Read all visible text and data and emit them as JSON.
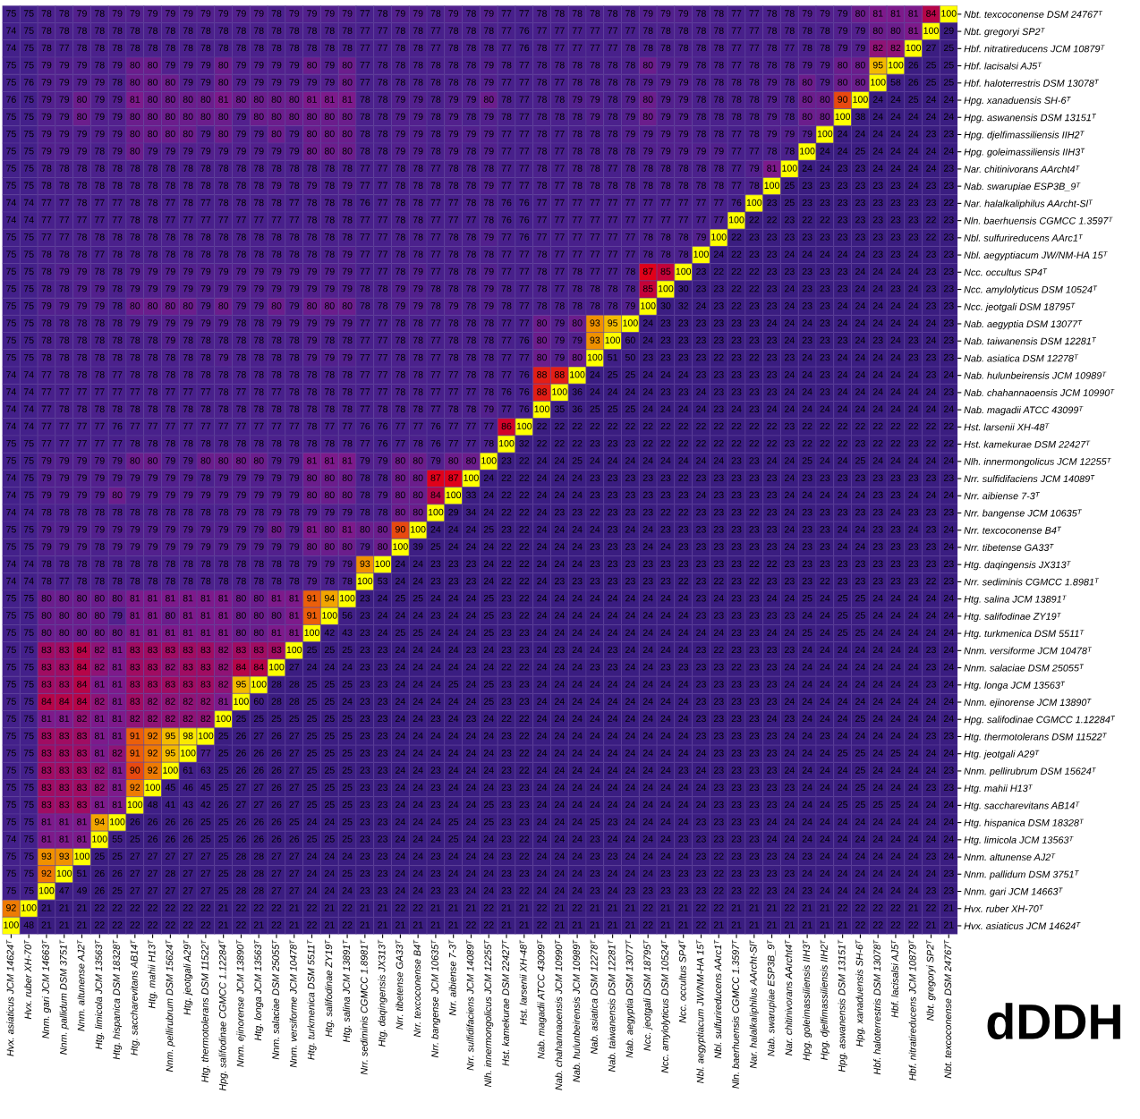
{
  "chart_data": {
    "type": "heatmap",
    "title": "dDDH",
    "data_labels": true,
    "categories": [
      "Hvx. asiaticus JCM 14624ᵀ",
      "Hvx. ruber XH-70ᵀ",
      "Nnm. gari JCM 14663ᵀ",
      "Nnm. pallidum DSM 3751ᵀ",
      "Nnm. altunense AJ2ᵀ",
      "Htg. limicola JCM 13563ᵀ",
      "Htg. hispanica DSM 18328ᵀ",
      "Htg. saccharevitans AB14ᵀ",
      "Htg. mahii H13ᵀ",
      "Nnm. pellirubrum DSM 15624ᵀ",
      "Htg. jeotgali A29ᵀ",
      "Htg. thermotolerans DSM 11522ᵀ",
      "Hpg. salifodinae CGMCC 1.12284ᵀ",
      "Nnm. ejinorense JCM 13890ᵀ",
      "Htg. longa JCM 13563ᵀ",
      "Nnm. salaciae DSM 25055ᵀ",
      "Nnm. versiforme JCM 10478ᵀ",
      "Htg. turkmenica DSM 5511ᵀ",
      "Htg. salifodinae ZY19ᵀ",
      "Htg. salina JCM 13891ᵀ",
      "Nrr. sediminis CGMCC 1.8981ᵀ",
      "Htg. daqingensis JX313ᵀ",
      "Nrr. tibetense GA33ᵀ",
      "Nrr. texcoconense B4ᵀ",
      "Nrr. bangense JCM 10635ᵀ",
      "Nrr. aibiense 7-3ᵀ",
      "Nrr. sulfidifaciens JCM 14089ᵀ",
      "Nlh. innermongolicus JCM 12255ᵀ",
      "Hst. kamekurae DSM 22427ᵀ",
      "Hst. larsenii XH-48ᵀ",
      "Nab. magadii ATCC 43099ᵀ",
      "Nab. chahannaoensis JCM 10990ᵀ",
      "Nab. hulunbeirensis JCM 10989ᵀ",
      "Nab. asiatica DSM 12278ᵀ",
      "Nab. taiwanensis DSM 12281ᵀ",
      "Nab. aegyptia DSM 13077ᵀ",
      "Ncc. jeotgali DSM 18795ᵀ",
      "Ncc. amylolyticus DSM 10524ᵀ",
      "Ncc. occultus SP4ᵀ",
      "Nbl. aegyptiacum JW/NM-HA 15ᵀ",
      "Nbl. sulfurireducens AArc1ᵀ",
      "Nln. baerhuensis CGMCC 1.3597ᵀ",
      "Nar. halalkaliphilus AArcht-Slᵀ",
      "Nab. swarupiae ESP3B_9ᵀ",
      "Nar. chitinivorans AArcht4ᵀ",
      "Hpg. goleimassiliensis IIH3ᵀ",
      "Hpg. djelfimassiliensis IIH2ᵀ",
      "Hpg. aswanensis DSM 13151ᵀ",
      "Hpg. xanaduensis SH-6ᵀ",
      "Hbf. haloterrestris DSM 13078ᵀ",
      "Hbf. lacisalsi AJ5ᵀ",
      "Hbf. nitratireducens JCM 10879ᵀ",
      "Nbt. gregoryi SP2ᵀ",
      "Nbt. texcoconense DSM 24767ᵀ"
    ],
    "y_categories": [
      "Nbt. texcoconense DSM 24767ᵀ",
      "Nbt. gregoryi SP2ᵀ",
      "Hbf. nitratireducens JCM 10879ᵀ",
      "Hbf. lacisalsi AJ5ᵀ",
      "Hbf. haloterrestris DSM 13078ᵀ",
      "Hpg. xanaduensis SH-6ᵀ",
      "Hpg. aswanensis DSM 13151ᵀ",
      "Hpg. djelfimassiliensis IIH2ᵀ",
      "Hpg. goleimassiliensis IIH3ᵀ",
      "Nar. chitinivorans AArcht4ᵀ",
      "Nab. swarupiae ESP3B_9ᵀ",
      "Nar. halalkaliphilus AArcht-Slᵀ",
      "Nln. baerhuensis CGMCC 1.3597ᵀ",
      "Nbl. sulfurireducens AArc1ᵀ",
      "Nbl. aegyptiacum JW/NM-HA 15ᵀ",
      "Ncc. occultus SP4ᵀ",
      "Ncc. amylolyticus DSM 10524ᵀ",
      "Ncc. jeotgali DSM 18795ᵀ",
      "Nab. aegyptia DSM 13077ᵀ",
      "Nab. taiwanensis DSM 12281ᵀ",
      "Nab. asiatica DSM 12278ᵀ",
      "Nab. hulunbeirensis JCM 10989ᵀ",
      "Nab. chahannaoensis JCM 10990ᵀ",
      "Nab. magadii ATCC 43099ᵀ",
      "Hst. larsenii XH-48ᵀ",
      "Hst. kamekurae DSM 22427ᵀ",
      "Nlh. innermongolicus JCM 12255ᵀ",
      "Nrr. sulfidifaciens JCM 14089ᵀ",
      "Nrr. aibiense 7-3ᵀ",
      "Nrr. bangense JCM 10635ᵀ",
      "Nrr. texcoconense B4ᵀ",
      "Nrr. tibetense GA33ᵀ",
      "Htg. daqingensis JX313ᵀ",
      "Nrr. sediminis CGMCC 1.8981ᵀ",
      "Htg. salina JCM 13891ᵀ",
      "Htg. salifodinae ZY19ᵀ",
      "Htg. turkmenica DSM 5511ᵀ",
      "Nnm. versiforme JCM 10478ᵀ",
      "Nnm. salaciae DSM 25055ᵀ",
      "Htg. longa JCM 13563ᵀ",
      "Nnm. ejinorense JCM 13890ᵀ",
      "Hpg. salifodinae CGMCC 1.12284ᵀ",
      "Htg. thermotolerans DSM 11522ᵀ",
      "Htg. jeotgali A29ᵀ",
      "Nnm. pellirubrum DSM 15624ᵀ",
      "Htg. mahii H13ᵀ",
      "Htg. saccharevitans AB14ᵀ",
      "Htg. hispanica DSM 18328ᵀ",
      "Htg. limicola JCM 13563ᵀ",
      "Nnm. altunense AJ2ᵀ",
      "Nnm. pallidum DSM 3751ᵀ",
      "Nnm. gari JCM 14663ᵀ",
      "Hvx. ruber XH-70ᵀ",
      "Hvx. asiaticus JCM 14624ᵀ"
    ],
    "cells": [
      [
        75,
        75,
        78,
        78,
        79,
        78,
        79,
        79,
        79,
        79,
        79,
        79,
        79,
        79,
        79,
        78,
        79,
        79,
        79,
        79,
        77,
        78,
        79,
        79,
        78,
        79,
        78,
        79,
        77,
        77,
        78,
        78,
        78,
        78,
        78,
        78,
        79,
        79,
        79,
        78,
        78,
        77,
        77,
        78,
        78,
        79,
        79,
        79,
        80,
        81,
        81,
        81,
        84,
        100
      ],
      [
        74,
        75,
        78,
        78,
        78,
        78,
        78,
        78,
        78,
        78,
        78,
        78,
        78,
        78,
        78,
        78,
        78,
        78,
        78,
        78,
        77,
        77,
        78,
        78,
        77,
        78,
        78,
        78,
        77,
        76,
        77,
        77,
        77,
        77,
        77,
        77,
        78,
        78,
        78,
        78,
        78,
        77,
        77,
        78,
        78,
        78,
        78,
        79,
        79,
        80,
        80,
        81,
        100,
        29
      ],
      [
        74,
        75,
        78,
        77,
        78,
        78,
        78,
        78,
        78,
        78,
        78,
        78,
        78,
        78,
        78,
        78,
        78,
        78,
        78,
        78,
        77,
        77,
        78,
        78,
        77,
        78,
        78,
        78,
        77,
        76,
        78,
        77,
        77,
        77,
        77,
        78,
        78,
        78,
        78,
        78,
        78,
        77,
        77,
        78,
        77,
        78,
        78,
        79,
        79,
        82,
        82,
        100,
        27,
        25
      ],
      [
        75,
        75,
        79,
        79,
        79,
        78,
        79,
        80,
        80,
        79,
        79,
        79,
        80,
        79,
        79,
        79,
        79,
        80,
        79,
        80,
        77,
        78,
        78,
        78,
        78,
        78,
        78,
        79,
        78,
        77,
        78,
        78,
        78,
        78,
        78,
        78,
        80,
        79,
        79,
        78,
        78,
        77,
        78,
        78,
        78,
        79,
        79,
        80,
        80,
        95,
        100,
        26,
        25,
        25
      ],
      [
        75,
        76,
        79,
        79,
        79,
        79,
        78,
        80,
        80,
        80,
        79,
        79,
        80,
        79,
        79,
        79,
        79,
        79,
        79,
        80,
        77,
        78,
        78,
        78,
        78,
        78,
        78,
        79,
        77,
        77,
        78,
        77,
        78,
        78,
        78,
        78,
        79,
        79,
        79,
        78,
        78,
        78,
        78,
        79,
        78,
        80,
        79,
        80,
        80,
        100,
        58,
        26,
        25,
        25
      ],
      [
        76,
        75,
        79,
        79,
        80,
        79,
        79,
        81,
        80,
        80,
        80,
        80,
        81,
        80,
        80,
        80,
        80,
        81,
        81,
        81,
        78,
        78,
        79,
        79,
        78,
        79,
        79,
        80,
        78,
        77,
        78,
        78,
        79,
        79,
        78,
        79,
        80,
        79,
        79,
        78,
        78,
        78,
        78,
        79,
        78,
        80,
        80,
        90,
        100,
        24,
        24,
        25,
        24,
        24
      ],
      [
        75,
        75,
        79,
        79,
        80,
        79,
        79,
        80,
        80,
        80,
        80,
        80,
        80,
        79,
        80,
        80,
        80,
        80,
        80,
        80,
        78,
        78,
        79,
        79,
        78,
        79,
        78,
        79,
        78,
        77,
        78,
        78,
        78,
        79,
        78,
        79,
        80,
        79,
        79,
        78,
        78,
        78,
        78,
        79,
        78,
        80,
        80,
        100,
        38,
        24,
        24,
        24,
        24,
        24
      ],
      [
        75,
        75,
        79,
        79,
        79,
        79,
        79,
        80,
        80,
        80,
        80,
        79,
        80,
        79,
        79,
        80,
        79,
        80,
        80,
        80,
        78,
        78,
        79,
        79,
        78,
        79,
        79,
        79,
        77,
        77,
        78,
        77,
        78,
        78,
        78,
        79,
        79,
        79,
        79,
        78,
        78,
        77,
        78,
        79,
        79,
        79,
        100,
        24,
        24,
        24,
        24,
        24,
        23,
        23
      ],
      [
        75,
        75,
        79,
        79,
        79,
        78,
        79,
        80,
        79,
        79,
        79,
        79,
        79,
        79,
        79,
        79,
        79,
        80,
        80,
        80,
        78,
        78,
        79,
        79,
        78,
        79,
        78,
        79,
        77,
        77,
        78,
        77,
        78,
        78,
        78,
        78,
        79,
        79,
        79,
        79,
        79,
        77,
        77,
        78,
        78,
        100,
        24,
        24,
        25,
        24,
        24,
        24,
        24,
        24
      ],
      [
        75,
        75,
        78,
        78,
        78,
        78,
        78,
        78,
        78,
        78,
        78,
        78,
        78,
        78,
        78,
        78,
        78,
        78,
        78,
        78,
        77,
        77,
        78,
        78,
        77,
        78,
        78,
        78,
        77,
        77,
        78,
        77,
        78,
        78,
        77,
        78,
        78,
        78,
        78,
        78,
        78,
        77,
        79,
        81,
        100,
        24,
        24,
        23,
        23,
        24,
        24,
        24,
        24,
        23
      ],
      [
        75,
        75,
        78,
        78,
        78,
        78,
        78,
        78,
        78,
        78,
        78,
        78,
        78,
        78,
        78,
        79,
        78,
        79,
        78,
        79,
        77,
        77,
        78,
        78,
        78,
        78,
        78,
        79,
        77,
        77,
        78,
        77,
        78,
        78,
        78,
        78,
        78,
        78,
        78,
        78,
        78,
        77,
        78,
        100,
        25,
        23,
        23,
        23,
        23,
        23,
        23,
        24,
        23,
        23
      ],
      [
        74,
        74,
        77,
        77,
        78,
        77,
        77,
        78,
        78,
        77,
        78,
        77,
        78,
        78,
        78,
        78,
        77,
        78,
        78,
        78,
        76,
        77,
        78,
        78,
        77,
        77,
        78,
        78,
        76,
        76,
        77,
        77,
        77,
        77,
        77,
        77,
        77,
        77,
        77,
        77,
        77,
        76,
        100,
        23,
        25,
        23,
        23,
        23,
        23,
        23,
        23,
        23,
        23,
        22
      ],
      [
        74,
        74,
        77,
        77,
        77,
        77,
        77,
        78,
        78,
        77,
        77,
        77,
        77,
        77,
        77,
        77,
        77,
        78,
        78,
        78,
        77,
        77,
        78,
        78,
        77,
        77,
        77,
        78,
        76,
        76,
        77,
        77,
        77,
        77,
        77,
        77,
        77,
        77,
        77,
        77,
        77,
        100,
        22,
        22,
        23,
        22,
        22,
        23,
        23,
        23,
        23,
        23,
        22,
        23
      ],
      [
        75,
        75,
        77,
        77,
        78,
        78,
        78,
        78,
        78,
        78,
        78,
        78,
        78,
        78,
        78,
        78,
        78,
        78,
        78,
        78,
        77,
        77,
        78,
        78,
        77,
        78,
        78,
        79,
        77,
        76,
        77,
        77,
        77,
        77,
        77,
        77,
        78,
        78,
        78,
        79,
        100,
        22,
        23,
        23,
        23,
        23,
        23,
        23,
        23,
        23,
        23,
        23,
        22,
        23
      ],
      [
        75,
        75,
        78,
        78,
        78,
        77,
        78,
        78,
        78,
        78,
        78,
        78,
        78,
        78,
        78,
        78,
        78,
        78,
        78,
        79,
        77,
        77,
        78,
        78,
        77,
        78,
        78,
        78,
        77,
        77,
        78,
        77,
        77,
        77,
        77,
        77,
        78,
        78,
        78,
        100,
        24,
        22,
        23,
        23,
        24,
        24,
        24,
        24,
        24,
        23,
        23,
        24,
        23,
        23
      ],
      [
        75,
        75,
        78,
        79,
        79,
        78,
        78,
        79,
        79,
        79,
        79,
        79,
        79,
        79,
        79,
        79,
        79,
        79,
        79,
        79,
        77,
        77,
        78,
        79,
        77,
        78,
        78,
        79,
        77,
        77,
        78,
        77,
        78,
        77,
        77,
        78,
        87,
        85,
        100,
        23,
        22,
        22,
        22,
        23,
        23,
        23,
        23,
        23,
        24,
        24,
        24,
        24,
        23,
        23
      ],
      [
        75,
        75,
        78,
        78,
        79,
        79,
        78,
        79,
        79,
        79,
        79,
        79,
        79,
        79,
        79,
        79,
        79,
        79,
        79,
        79,
        78,
        78,
        79,
        79,
        78,
        78,
        78,
        79,
        78,
        77,
        78,
        77,
        78,
        78,
        78,
        78,
        85,
        100,
        30,
        23,
        23,
        22,
        22,
        23,
        24,
        23,
        23,
        23,
        24,
        24,
        23,
        24,
        23,
        23
      ],
      [
        75,
        75,
        79,
        79,
        79,
        79,
        78,
        80,
        80,
        80,
        80,
        79,
        80,
        79,
        79,
        80,
        79,
        80,
        80,
        80,
        78,
        78,
        79,
        79,
        78,
        79,
        78,
        79,
        78,
        77,
        78,
        78,
        78,
        78,
        78,
        79,
        100,
        30,
        32,
        24,
        23,
        22,
        23,
        23,
        24,
        23,
        23,
        24,
        24,
        24,
        24,
        24,
        23,
        23
      ],
      [
        75,
        75,
        78,
        78,
        78,
        78,
        78,
        79,
        79,
        79,
        79,
        79,
        79,
        78,
        78,
        79,
        79,
        79,
        79,
        79,
        77,
        77,
        78,
        78,
        77,
        78,
        78,
        78,
        77,
        77,
        80,
        79,
        80,
        93,
        95,
        100,
        24,
        23,
        23,
        23,
        23,
        23,
        23,
        24,
        24,
        24,
        23,
        24,
        24,
        24,
        24,
        24,
        24,
        23
      ],
      [
        75,
        75,
        78,
        78,
        78,
        78,
        78,
        78,
        78,
        79,
        78,
        78,
        78,
        78,
        78,
        78,
        78,
        79,
        78,
        78,
        77,
        77,
        78,
        78,
        77,
        78,
        78,
        78,
        77,
        76,
        80,
        79,
        79,
        93,
        100,
        60,
        24,
        23,
        23,
        23,
        23,
        23,
        23,
        23,
        24,
        23,
        23,
        23,
        24,
        23,
        24,
        23,
        24,
        23
      ],
      [
        75,
        75,
        78,
        78,
        78,
        78,
        78,
        78,
        78,
        78,
        78,
        78,
        79,
        78,
        78,
        78,
        78,
        79,
        79,
        79,
        77,
        77,
        78,
        78,
        77,
        78,
        78,
        78,
        77,
        77,
        80,
        79,
        80,
        100,
        51,
        50,
        23,
        23,
        23,
        23,
        22,
        23,
        22,
        23,
        23,
        24,
        23,
        24,
        24,
        24,
        24,
        23,
        23,
        23
      ],
      [
        74,
        74,
        77,
        78,
        78,
        78,
        77,
        78,
        78,
        78,
        78,
        78,
        78,
        78,
        78,
        78,
        78,
        78,
        78,
        78,
        77,
        77,
        78,
        78,
        77,
        77,
        78,
        78,
        77,
        76,
        88,
        88,
        100,
        24,
        25,
        25,
        24,
        24,
        24,
        23,
        23,
        23,
        23,
        23,
        24,
        24,
        23,
        24,
        24,
        24,
        24,
        24,
        23,
        24
      ],
      [
        74,
        74,
        77,
        77,
        77,
        77,
        77,
        77,
        78,
        77,
        77,
        77,
        78,
        77,
        78,
        77,
        78,
        78,
        78,
        78,
        77,
        77,
        78,
        78,
        77,
        77,
        77,
        78,
        76,
        76,
        88,
        100,
        36,
        24,
        24,
        24,
        24,
        23,
        23,
        24,
        23,
        23,
        23,
        23,
        24,
        24,
        23,
        24,
        24,
        24,
        24,
        24,
        24,
        23
      ],
      [
        74,
        74,
        77,
        78,
        78,
        78,
        78,
        78,
        78,
        78,
        78,
        78,
        78,
        78,
        78,
        78,
        78,
        78,
        78,
        78,
        77,
        78,
        78,
        78,
        77,
        78,
        78,
        79,
        77,
        76,
        100,
        35,
        36,
        25,
        25,
        25,
        24,
        24,
        24,
        24,
        23,
        24,
        23,
        24,
        24,
        24,
        24,
        24,
        24,
        24,
        24,
        24,
        24,
        24
      ],
      [
        74,
        74,
        77,
        77,
        77,
        77,
        76,
        77,
        77,
        77,
        77,
        77,
        77,
        77,
        77,
        77,
        77,
        78,
        77,
        77,
        76,
        76,
        77,
        77,
        76,
        77,
        77,
        77,
        86,
        100,
        22,
        22,
        22,
        22,
        22,
        22,
        22,
        22,
        22,
        22,
        22,
        22,
        22,
        22,
        23,
        22,
        22,
        22,
        22,
        22,
        22,
        22,
        22,
        22
      ],
      [
        75,
        75,
        77,
        77,
        77,
        77,
        77,
        78,
        78,
        78,
        78,
        78,
        78,
        78,
        78,
        78,
        78,
        78,
        78,
        78,
        77,
        76,
        77,
        78,
        76,
        77,
        77,
        78,
        100,
        32,
        22,
        22,
        22,
        23,
        23,
        23,
        22,
        22,
        22,
        22,
        22,
        22,
        22,
        22,
        23,
        22,
        22,
        22,
        23,
        22,
        22,
        23,
        22,
        22
      ],
      [
        75,
        75,
        79,
        79,
        79,
        79,
        79,
        80,
        80,
        79,
        79,
        80,
        80,
        80,
        80,
        79,
        79,
        81,
        81,
        81,
        79,
        79,
        80,
        80,
        79,
        80,
        80,
        100,
        23,
        22,
        24,
        24,
        25,
        24,
        24,
        24,
        24,
        24,
        24,
        24,
        24,
        23,
        23,
        24,
        24,
        25,
        24,
        24,
        25,
        24,
        24,
        24,
        24,
        24
      ],
      [
        74,
        75,
        79,
        79,
        79,
        79,
        79,
        79,
        79,
        79,
        79,
        78,
        79,
        79,
        79,
        79,
        79,
        80,
        80,
        80,
        78,
        78,
        80,
        80,
        87,
        87,
        100,
        24,
        22,
        22,
        24,
        24,
        24,
        23,
        23,
        23,
        23,
        23,
        22,
        23,
        23,
        23,
        23,
        23,
        24,
        23,
        23,
        23,
        23,
        23,
        23,
        23,
        23,
        23
      ],
      [
        74,
        75,
        79,
        79,
        79,
        79,
        80,
        79,
        79,
        79,
        79,
        79,
        79,
        79,
        79,
        79,
        79,
        80,
        80,
        80,
        78,
        79,
        80,
        80,
        84,
        100,
        33,
        24,
        22,
        22,
        24,
        24,
        24,
        23,
        23,
        23,
        23,
        23,
        23,
        24,
        23,
        23,
        23,
        23,
        24,
        24,
        24,
        24,
        24,
        23,
        23,
        24,
        24,
        24
      ],
      [
        74,
        74,
        78,
        78,
        78,
        78,
        78,
        78,
        78,
        78,
        78,
        78,
        78,
        79,
        78,
        79,
        78,
        79,
        79,
        79,
        78,
        78,
        80,
        80,
        100,
        29,
        34,
        24,
        22,
        22,
        24,
        23,
        23,
        22,
        23,
        23,
        23,
        22,
        22,
        23,
        23,
        23,
        22,
        23,
        24,
        23,
        23,
        23,
        23,
        23,
        24,
        23,
        23,
        23
      ],
      [
        75,
        75,
        79,
        79,
        79,
        79,
        79,
        79,
        79,
        79,
        79,
        79,
        79,
        79,
        79,
        80,
        79,
        81,
        80,
        81,
        80,
        80,
        90,
        100,
        24,
        24,
        24,
        25,
        23,
        22,
        24,
        24,
        24,
        24,
        23,
        24,
        24,
        23,
        23,
        23,
        23,
        23,
        23,
        23,
        24,
        23,
        23,
        24,
        24,
        23,
        23,
        24,
        23,
        24
      ],
      [
        75,
        75,
        79,
        79,
        79,
        78,
        79,
        79,
        79,
        79,
        79,
        79,
        79,
        79,
        79,
        79,
        79,
        80,
        80,
        80,
        79,
        80,
        100,
        39,
        25,
        24,
        24,
        24,
        22,
        22,
        24,
        24,
        24,
        23,
        23,
        23,
        24,
        24,
        23,
        23,
        23,
        23,
        23,
        23,
        24,
        23,
        23,
        24,
        24,
        23,
        23,
        23,
        23,
        24
      ],
      [
        74,
        74,
        78,
        78,
        78,
        78,
        78,
        78,
        78,
        78,
        78,
        78,
        78,
        78,
        78,
        78,
        78,
        79,
        79,
        79,
        93,
        100,
        24,
        24,
        23,
        23,
        23,
        24,
        22,
        22,
        24,
        24,
        24,
        23,
        23,
        23,
        23,
        23,
        23,
        23,
        23,
        23,
        22,
        22,
        23,
        23,
        23,
        23,
        23,
        23,
        23,
        23,
        23,
        23
      ],
      [
        74,
        74,
        78,
        77,
        78,
        78,
        78,
        78,
        78,
        78,
        78,
        78,
        78,
        78,
        78,
        78,
        78,
        79,
        78,
        78,
        100,
        53,
        24,
        24,
        23,
        23,
        23,
        24,
        22,
        22,
        24,
        23,
        23,
        23,
        23,
        23,
        23,
        23,
        22,
        23,
        22,
        23,
        22,
        23,
        23,
        23,
        22,
        23,
        23,
        23,
        23,
        23,
        22,
        23
      ],
      [
        75,
        75,
        80,
        80,
        80,
        80,
        80,
        81,
        81,
        81,
        81,
        81,
        81,
        80,
        80,
        81,
        81,
        91,
        94,
        100,
        23,
        24,
        25,
        25,
        24,
        24,
        24,
        25,
        23,
        22,
        24,
        24,
        24,
        24,
        24,
        24,
        24,
        24,
        24,
        23,
        24,
        23,
        23,
        24,
        24,
        25,
        24,
        25,
        25,
        24,
        24,
        24,
        24,
        24
      ],
      [
        75,
        75,
        80,
        80,
        80,
        80,
        79,
        81,
        81,
        80,
        81,
        81,
        81,
        80,
        80,
        80,
        81,
        91,
        100,
        56,
        23,
        24,
        24,
        24,
        23,
        24,
        24,
        25,
        23,
        22,
        24,
        24,
        24,
        24,
        24,
        24,
        24,
        24,
        24,
        23,
        23,
        23,
        23,
        23,
        23,
        24,
        24,
        25,
        25,
        24,
        24,
        24,
        24,
        24
      ],
      [
        75,
        75,
        80,
        80,
        80,
        80,
        80,
        81,
        81,
        81,
        81,
        81,
        81,
        80,
        80,
        81,
        81,
        100,
        42,
        43,
        23,
        24,
        25,
        25,
        24,
        24,
        24,
        25,
        23,
        23,
        24,
        24,
        24,
        24,
        24,
        24,
        24,
        24,
        24,
        24,
        24,
        23,
        23,
        24,
        24,
        25,
        24,
        25,
        25,
        24,
        24,
        24,
        24,
        24
      ],
      [
        75,
        75,
        83,
        83,
        84,
        82,
        81,
        83,
        83,
        83,
        83,
        83,
        82,
        83,
        83,
        83,
        100,
        25,
        25,
        25,
        23,
        23,
        24,
        24,
        24,
        24,
        23,
        24,
        23,
        23,
        24,
        23,
        24,
        24,
        23,
        24,
        24,
        24,
        24,
        23,
        22,
        23,
        23,
        23,
        23,
        24,
        24,
        24,
        24,
        24,
        24,
        24,
        23,
        24
      ],
      [
        75,
        75,
        83,
        83,
        84,
        82,
        81,
        83,
        83,
        82,
        83,
        83,
        82,
        84,
        84,
        100,
        27,
        24,
        24,
        24,
        23,
        23,
        24,
        24,
        24,
        24,
        24,
        24,
        22,
        22,
        24,
        24,
        24,
        23,
        23,
        24,
        24,
        23,
        23,
        23,
        23,
        22,
        23,
        23,
        24,
        24,
        24,
        24,
        24,
        24,
        24,
        24,
        23,
        24
      ],
      [
        75,
        75,
        83,
        83,
        84,
        81,
        81,
        83,
        83,
        83,
        83,
        83,
        82,
        95,
        100,
        28,
        28,
        25,
        25,
        25,
        23,
        23,
        24,
        24,
        24,
        25,
        24,
        25,
        23,
        23,
        24,
        24,
        24,
        24,
        24,
        24,
        24,
        24,
        24,
        23,
        23,
        23,
        23,
        23,
        24,
        24,
        24,
        24,
        24,
        24,
        24,
        24,
        23,
        24
      ],
      [
        75,
        75,
        84,
        84,
        84,
        82,
        81,
        83,
        82,
        82,
        82,
        82,
        81,
        100,
        60,
        28,
        28,
        25,
        25,
        24,
        23,
        23,
        24,
        24,
        24,
        24,
        24,
        25,
        23,
        23,
        24,
        24,
        24,
        24,
        24,
        24,
        24,
        24,
        24,
        23,
        23,
        23,
        23,
        23,
        24,
        24,
        24,
        24,
        24,
        24,
        24,
        24,
        24,
        24
      ],
      [
        75,
        75,
        81,
        81,
        82,
        81,
        81,
        82,
        82,
        82,
        82,
        82,
        100,
        25,
        25,
        25,
        25,
        25,
        25,
        25,
        23,
        23,
        24,
        24,
        23,
        24,
        23,
        24,
        22,
        22,
        24,
        24,
        24,
        24,
        24,
        24,
        24,
        24,
        24,
        23,
        23,
        23,
        23,
        24,
        23,
        24,
        24,
        24,
        25,
        24,
        24,
        24,
        24,
        24
      ],
      [
        75,
        75,
        83,
        83,
        83,
        81,
        81,
        91,
        92,
        95,
        98,
        100,
        25,
        26,
        27,
        26,
        27,
        25,
        25,
        25,
        23,
        23,
        24,
        24,
        24,
        24,
        24,
        24,
        23,
        22,
        24,
        24,
        24,
        24,
        24,
        24,
        24,
        24,
        24,
        23,
        23,
        23,
        23,
        23,
        24,
        24,
        23,
        24,
        24,
        24,
        24,
        24,
        23,
        23
      ],
      [
        75,
        75,
        83,
        83,
        83,
        81,
        82,
        91,
        92,
        95,
        100,
        77,
        25,
        26,
        26,
        26,
        27,
        25,
        25,
        25,
        23,
        23,
        24,
        24,
        24,
        24,
        24,
        24,
        23,
        22,
        24,
        24,
        24,
        24,
        24,
        24,
        24,
        24,
        24,
        24,
        23,
        23,
        23,
        23,
        24,
        24,
        24,
        25,
        25,
        24,
        25,
        24,
        24,
        24
      ],
      [
        75,
        75,
        83,
        83,
        83,
        82,
        81,
        90,
        92,
        100,
        61,
        63,
        25,
        26,
        26,
        26,
        27,
        25,
        25,
        25,
        23,
        23,
        24,
        24,
        23,
        24,
        24,
        24,
        23,
        22,
        24,
        24,
        24,
        24,
        24,
        24,
        24,
        24,
        23,
        24,
        23,
        23,
        23,
        23,
        24,
        24,
        24,
        24,
        25,
        24,
        24,
        24,
        24,
        23
      ],
      [
        75,
        75,
        83,
        83,
        83,
        82,
        81,
        92,
        100,
        45,
        46,
        45,
        25,
        27,
        27,
        26,
        27,
        25,
        25,
        25,
        23,
        23,
        24,
        24,
        23,
        24,
        24,
        24,
        23,
        23,
        24,
        24,
        24,
        24,
        24,
        24,
        24,
        24,
        24,
        24,
        23,
        23,
        23,
        23,
        23,
        24,
        24,
        24,
        25,
        24,
        24,
        24,
        23,
        23
      ],
      [
        75,
        75,
        83,
        83,
        83,
        81,
        81,
        100,
        48,
        41,
        43,
        42,
        26,
        27,
        27,
        26,
        27,
        25,
        25,
        25,
        23,
        23,
        24,
        24,
        23,
        24,
        24,
        25,
        23,
        23,
        24,
        24,
        24,
        24,
        24,
        24,
        24,
        24,
        24,
        24,
        23,
        23,
        23,
        23,
        24,
        24,
        24,
        25,
        25,
        25,
        25,
        24,
        24,
        24
      ],
      [
        75,
        75,
        81,
        81,
        81,
        94,
        100,
        26,
        26,
        26,
        26,
        25,
        25,
        26,
        26,
        26,
        25,
        24,
        24,
        25,
        23,
        23,
        24,
        24,
        24,
        25,
        24,
        25,
        23,
        23,
        24,
        24,
        24,
        25,
        23,
        24,
        24,
        24,
        24,
        23,
        23,
        23,
        23,
        24,
        24,
        24,
        24,
        24,
        24,
        24,
        24,
        24,
        24,
        24
      ],
      [
        74,
        75,
        81,
        81,
        81,
        100,
        55,
        25,
        26,
        26,
        26,
        25,
        25,
        26,
        26,
        26,
        26,
        25,
        25,
        25,
        23,
        23,
        24,
        24,
        24,
        25,
        24,
        24,
        23,
        22,
        24,
        24,
        24,
        23,
        24,
        24,
        24,
        24,
        23,
        23,
        23,
        23,
        23,
        24,
        24,
        24,
        24,
        24,
        24,
        24,
        24,
        24,
        24,
        24
      ],
      [
        75,
        75,
        93,
        93,
        100,
        25,
        25,
        27,
        27,
        27,
        27,
        27,
        25,
        28,
        28,
        27,
        27,
        24,
        24,
        24,
        23,
        23,
        24,
        24,
        23,
        24,
        24,
        24,
        23,
        22,
        24,
        24,
        24,
        23,
        23,
        24,
        24,
        24,
        24,
        23,
        22,
        23,
        23,
        23,
        24,
        23,
        24,
        24,
        24,
        24,
        24,
        24,
        23,
        24
      ],
      [
        75,
        75,
        92,
        100,
        51,
        26,
        26,
        27,
        27,
        28,
        27,
        27,
        25,
        28,
        28,
        27,
        27,
        24,
        24,
        25,
        23,
        23,
        24,
        24,
        23,
        24,
        24,
        24,
        23,
        23,
        24,
        24,
        24,
        23,
        24,
        24,
        24,
        23,
        23,
        23,
        22,
        23,
        23,
        23,
        23,
        24,
        24,
        24,
        24,
        24,
        24,
        24,
        24,
        23
      ],
      [
        75,
        75,
        100,
        47,
        49,
        26,
        25,
        27,
        27,
        27,
        27,
        27,
        25,
        28,
        28,
        27,
        27,
        24,
        24,
        24,
        23,
        23,
        24,
        24,
        23,
        23,
        24,
        24,
        23,
        22,
        24,
        24,
        24,
        23,
        24,
        23,
        23,
        23,
        23,
        23,
        22,
        23,
        22,
        23,
        24,
        23,
        24,
        24,
        24,
        24,
        24,
        24,
        23,
        23
      ],
      [
        92,
        100,
        21,
        21,
        21,
        22,
        22,
        22,
        22,
        22,
        22,
        22,
        21,
        22,
        22,
        22,
        21,
        22,
        21,
        22,
        21,
        21,
        22,
        22,
        21,
        21,
        21,
        22,
        21,
        21,
        22,
        21,
        22,
        21,
        21,
        21,
        22,
        21,
        21,
        22,
        22,
        21,
        21,
        21,
        22,
        21,
        21,
        22,
        22,
        22,
        22,
        21,
        22,
        21
      ],
      [
        100,
        48,
        21,
        21,
        21,
        22,
        22,
        22,
        22,
        22,
        22,
        22,
        21,
        22,
        21,
        22,
        21,
        22,
        21,
        22,
        21,
        21,
        21,
        21,
        21,
        21,
        22,
        22,
        21,
        21,
        22,
        21,
        21,
        21,
        21,
        21,
        22,
        21,
        21,
        22,
        21,
        21,
        21,
        21,
        21,
        21,
        21,
        21,
        22,
        22,
        22,
        22,
        21,
        21
      ]
    ]
  }
}
